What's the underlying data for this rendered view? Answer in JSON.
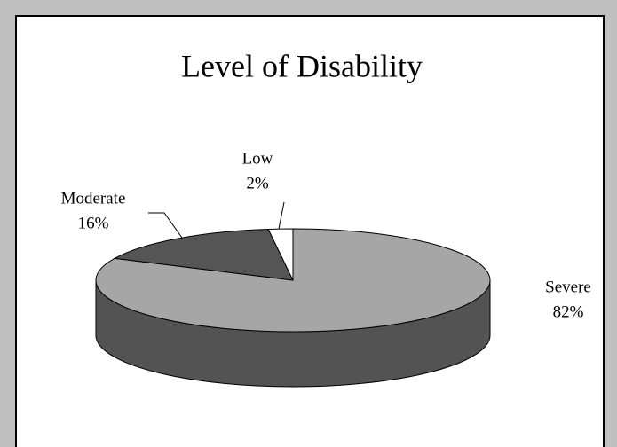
{
  "chart_data": {
    "type": "pie3d",
    "title": "Level of Disability",
    "categories": [
      "Severe",
      "Moderate",
      "Low"
    ],
    "values": [
      82,
      16,
      2
    ],
    "value_labels": [
      "82%",
      "16%",
      "2%"
    ],
    "colors": [
      "#a6a6a6",
      "#555555",
      "#ffffff"
    ]
  }
}
